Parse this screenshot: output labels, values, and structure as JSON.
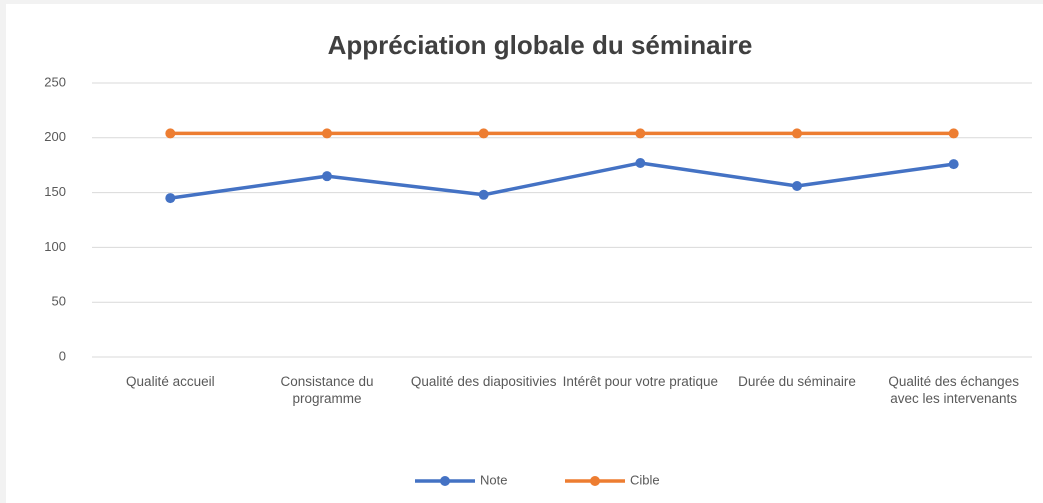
{
  "chart_data": {
    "type": "line",
    "title": "Appréciation globale du séminaire",
    "categories": [
      "Qualité accueil",
      "Consistance du programme",
      "Qualité des diapositivies",
      "Intérêt pour votre pratique",
      "Durée du séminaire",
      "Qualité des échanges avec les intervenants"
    ],
    "series": [
      {
        "name": "Note",
        "color": "#4472c4",
        "values": [
          145,
          165,
          148,
          177,
          156,
          176
        ]
      },
      {
        "name": "Cible",
        "color": "#ed7d31",
        "values": [
          204,
          204,
          204,
          204,
          204,
          204
        ]
      }
    ],
    "ylim": [
      0,
      250
    ],
    "yticks": [
      0,
      50,
      100,
      150,
      200,
      250
    ],
    "grid": true,
    "legend": "bottom"
  }
}
